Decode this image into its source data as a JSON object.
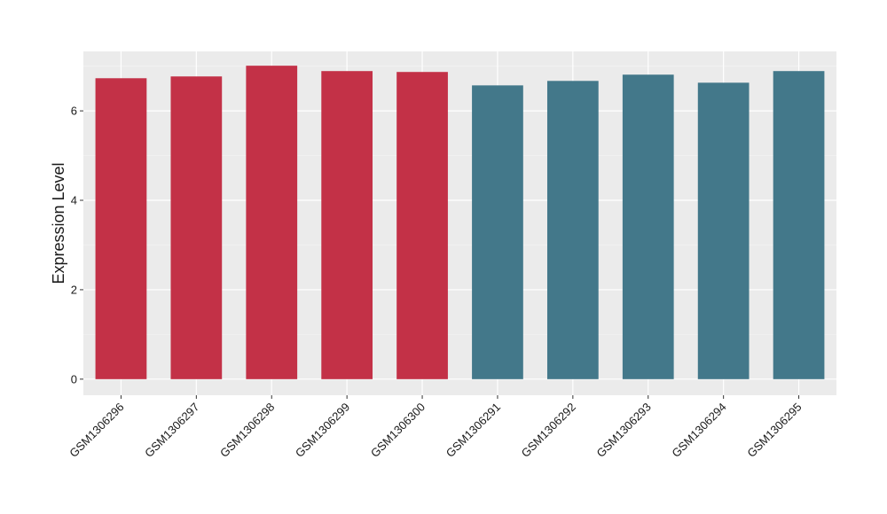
{
  "chart_data": {
    "type": "bar",
    "y_label": "Expression Level",
    "categories": [
      "GSM1306296",
      "GSM1306297",
      "GSM1306298",
      "GSM1306299",
      "GSM1306300",
      "GSM1306291",
      "GSM1306292",
      "GSM1306293",
      "GSM1306294",
      "GSM1306295"
    ],
    "values": [
      6.73,
      6.77,
      7.01,
      6.89,
      6.87,
      6.57,
      6.67,
      6.81,
      6.63,
      6.89
    ],
    "colors": [
      "#c33147",
      "#c33147",
      "#c33147",
      "#c33147",
      "#c33147",
      "#43788a",
      "#43788a",
      "#43788a",
      "#43788a",
      "#43788a"
    ],
    "ylim": [
      -0.36,
      7.33
    ],
    "yticks": [
      0,
      2,
      4,
      6
    ],
    "grid": true
  }
}
